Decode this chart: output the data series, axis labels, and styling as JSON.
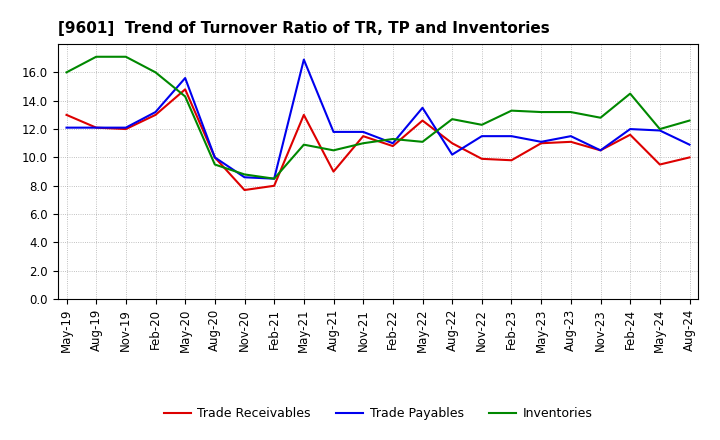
{
  "title": "[9601]  Trend of Turnover Ratio of TR, TP and Inventories",
  "x_labels": [
    "May-19",
    "Aug-19",
    "Nov-19",
    "Feb-20",
    "May-20",
    "Aug-20",
    "Nov-20",
    "Feb-21",
    "May-21",
    "Aug-21",
    "Nov-21",
    "Feb-22",
    "May-22",
    "Aug-22",
    "Nov-22",
    "Feb-23",
    "May-23",
    "Aug-23",
    "Nov-23",
    "Feb-24",
    "May-24",
    "Aug-24"
  ],
  "trade_receivables": [
    13.0,
    12.1,
    12.0,
    13.0,
    14.8,
    10.0,
    7.7,
    8.0,
    13.0,
    9.0,
    11.5,
    10.8,
    12.6,
    11.0,
    9.9,
    9.8,
    11.0,
    11.1,
    10.5,
    11.6,
    9.5,
    10.0
  ],
  "trade_payables": [
    12.1,
    12.1,
    12.1,
    13.2,
    15.6,
    10.0,
    8.6,
    8.5,
    16.9,
    11.8,
    11.8,
    11.0,
    13.5,
    10.2,
    11.5,
    11.5,
    11.1,
    11.5,
    10.5,
    12.0,
    11.9,
    10.9
  ],
  "inventories": [
    16.0,
    17.1,
    17.1,
    16.0,
    14.3,
    9.5,
    8.8,
    8.5,
    10.9,
    10.5,
    11.0,
    11.3,
    11.1,
    12.7,
    12.3,
    13.3,
    13.2,
    13.2,
    12.8,
    14.5,
    12.0,
    12.6
  ],
  "color_tr": "#dd0000",
  "color_tp": "#0000ee",
  "color_inv": "#008800",
  "ylim": [
    0.0,
    18.0
  ],
  "yticks": [
    0.0,
    2.0,
    4.0,
    6.0,
    8.0,
    10.0,
    12.0,
    14.0,
    16.0
  ],
  "legend_labels": [
    "Trade Receivables",
    "Trade Payables",
    "Inventories"
  ],
  "background_color": "#ffffff",
  "grid_color": "#999999",
  "title_fontsize": 11,
  "tick_fontsize": 8.5
}
